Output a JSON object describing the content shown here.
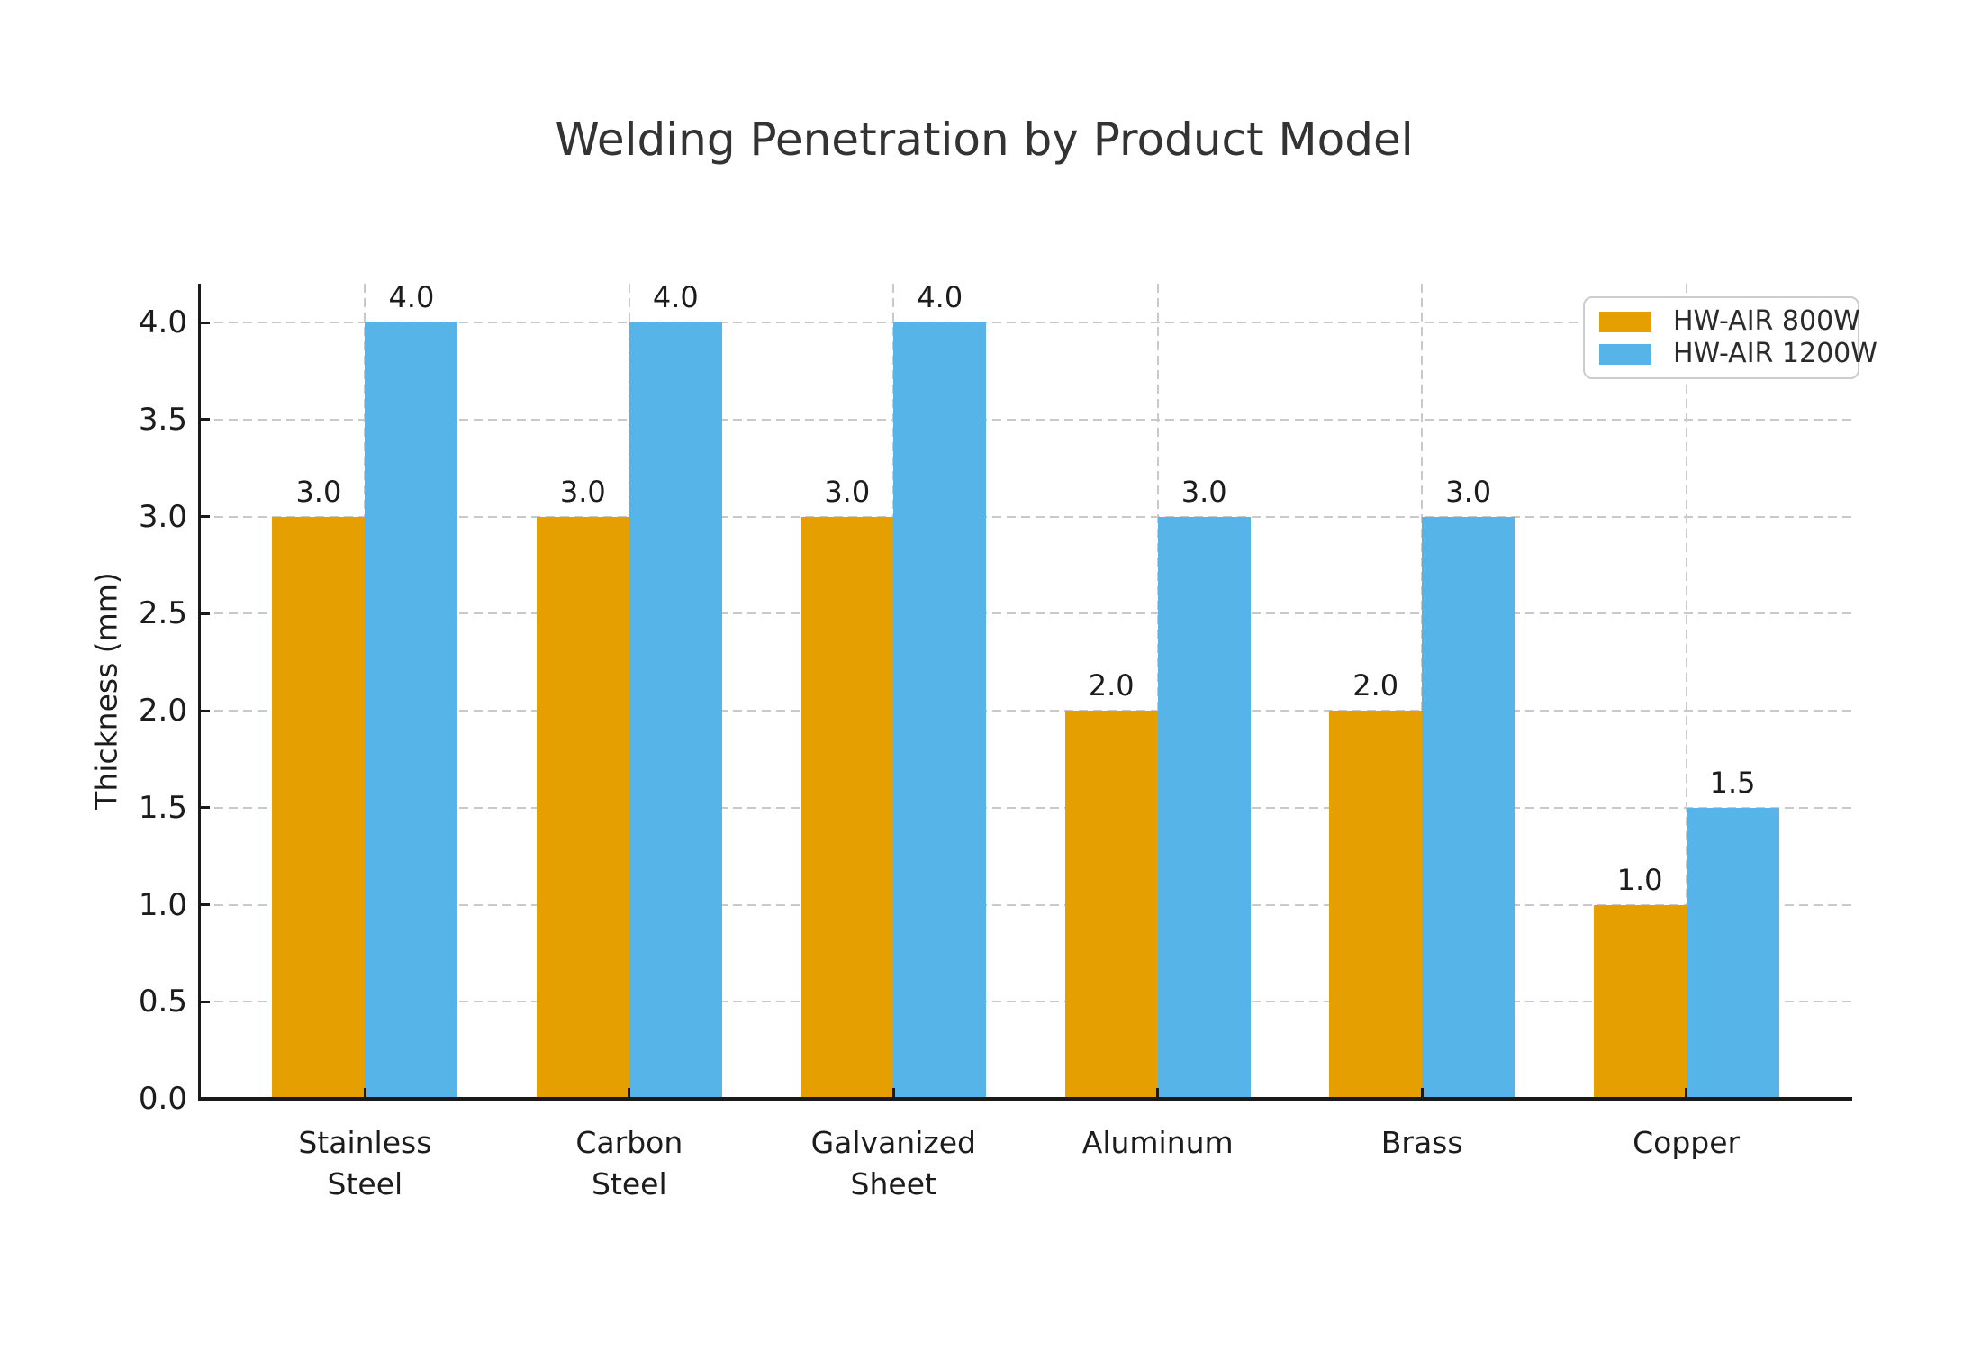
{
  "chart_data": {
    "type": "bar",
    "title": "Welding Penetration by Product Model",
    "ylabel": "Thickness (mm)",
    "xlabel": "",
    "categories": [
      "Stainless\nSteel",
      "Carbon\nSteel",
      "Galvanized\nSheet",
      "Aluminum",
      "Brass",
      "Copper"
    ],
    "series": [
      {
        "name": "HW-AIR 800W",
        "color": "#E69F00",
        "values": [
          3.0,
          3.0,
          3.0,
          2.0,
          2.0,
          1.0
        ]
      },
      {
        "name": "HW-AIR 1200W",
        "color": "#56B4E9",
        "values": [
          4.0,
          4.0,
          4.0,
          3.0,
          3.0,
          1.5
        ]
      }
    ],
    "bar_value_labels": [
      "3.0",
      "4.0",
      "3.0",
      "4.0",
      "3.0",
      "4.0",
      "2.0",
      "3.0",
      "2.0",
      "3.0",
      "1.0",
      "1.5"
    ],
    "ylim": [
      0,
      4.2
    ],
    "yticks": [
      0,
      0.5,
      1,
      1.5,
      2,
      2.5,
      3,
      3.5,
      4
    ],
    "ytick_labels": [
      "0.0",
      "0.5",
      "1.0",
      "1.5",
      "2.0",
      "2.5",
      "3.0",
      "3.5",
      "4.0"
    ],
    "grid": {
      "axes": "both",
      "style": "dashed",
      "color": "#c9c9c9"
    },
    "legend_position": "upper right",
    "legend_entries": [
      "HW-AIR 800W",
      "HW-AIR 1200W"
    ],
    "background": "#ffffff",
    "text_color": "#1c1c1c"
  }
}
